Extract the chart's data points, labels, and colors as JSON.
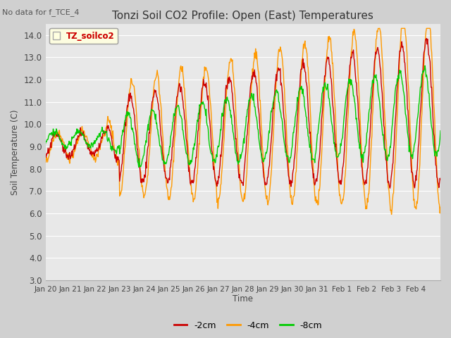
{
  "title": "Tonzi Soil CO2 Profile: Open (East) Temperatures",
  "subtitle": "No data for f_TCE_4",
  "ylabel": "Soil Temperature (C)",
  "xlabel": "Time",
  "legend_label": "TZ_soilco2",
  "ylim": [
    3.0,
    14.5
  ],
  "yticks": [
    3.0,
    4.0,
    5.0,
    6.0,
    7.0,
    8.0,
    9.0,
    10.0,
    11.0,
    12.0,
    13.0,
    14.0
  ],
  "xtick_labels": [
    "Jan 20",
    "Jan 21",
    "Jan 22",
    "Jan 23",
    "Jan 24",
    "Jan 25",
    "Jan 26",
    "Jan 27",
    "Jan 28",
    "Jan 29",
    "Jan 30",
    "Jan 31",
    "Feb 1",
    "Feb 2",
    "Feb 3",
    "Feb 4"
  ],
  "line_colors": {
    "m2cm": "#cc0000",
    "m4cm": "#ff9900",
    "m8cm": "#00cc00"
  },
  "line_labels": [
    "-2cm",
    "-4cm",
    "-8cm"
  ],
  "fig_bg_color": "#d0d0d0",
  "plot_bg_color": "#e8e8e8",
  "grid_color": "#ffffff",
  "figsize": [
    6.4,
    4.8
  ],
  "dpi": 100
}
